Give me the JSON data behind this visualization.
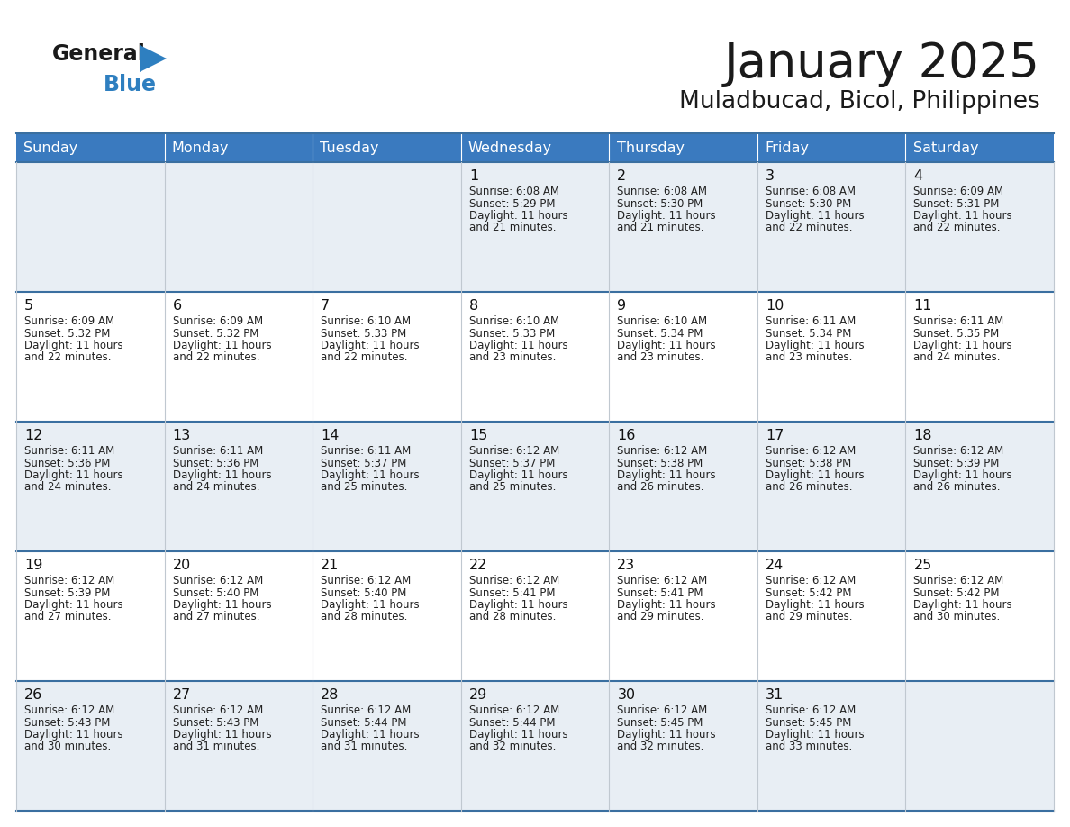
{
  "title": "January 2025",
  "subtitle": "Muladbucad, Bicol, Philippines",
  "header_color": "#3a7abf",
  "header_text_color": "#ffffff",
  "cell_bg_row0": "#e8eef4",
  "cell_bg_row1": "#ffffff",
  "cell_bg_row2": "#e8eef4",
  "cell_bg_row3": "#ffffff",
  "cell_bg_row4": "#e8eef4",
  "separator_color": "#3a6fa0",
  "grid_color": "#c0c8d0",
  "day_headers": [
    "Sunday",
    "Monday",
    "Tuesday",
    "Wednesday",
    "Thursday",
    "Friday",
    "Saturday"
  ],
  "days_data": [
    {
      "day": 1,
      "col": 3,
      "row": 0,
      "sunrise": "6:08 AM",
      "sunset": "5:29 PM",
      "daylight": "11 hours and 21 minutes."
    },
    {
      "day": 2,
      "col": 4,
      "row": 0,
      "sunrise": "6:08 AM",
      "sunset": "5:30 PM",
      "daylight": "11 hours and 21 minutes."
    },
    {
      "day": 3,
      "col": 5,
      "row": 0,
      "sunrise": "6:08 AM",
      "sunset": "5:30 PM",
      "daylight": "11 hours and 22 minutes."
    },
    {
      "day": 4,
      "col": 6,
      "row": 0,
      "sunrise": "6:09 AM",
      "sunset": "5:31 PM",
      "daylight": "11 hours and 22 minutes."
    },
    {
      "day": 5,
      "col": 0,
      "row": 1,
      "sunrise": "6:09 AM",
      "sunset": "5:32 PM",
      "daylight": "11 hours and 22 minutes."
    },
    {
      "day": 6,
      "col": 1,
      "row": 1,
      "sunrise": "6:09 AM",
      "sunset": "5:32 PM",
      "daylight": "11 hours and 22 minutes."
    },
    {
      "day": 7,
      "col": 2,
      "row": 1,
      "sunrise": "6:10 AM",
      "sunset": "5:33 PM",
      "daylight": "11 hours and 22 minutes."
    },
    {
      "day": 8,
      "col": 3,
      "row": 1,
      "sunrise": "6:10 AM",
      "sunset": "5:33 PM",
      "daylight": "11 hours and 23 minutes."
    },
    {
      "day": 9,
      "col": 4,
      "row": 1,
      "sunrise": "6:10 AM",
      "sunset": "5:34 PM",
      "daylight": "11 hours and 23 minutes."
    },
    {
      "day": 10,
      "col": 5,
      "row": 1,
      "sunrise": "6:11 AM",
      "sunset": "5:34 PM",
      "daylight": "11 hours and 23 minutes."
    },
    {
      "day": 11,
      "col": 6,
      "row": 1,
      "sunrise": "6:11 AM",
      "sunset": "5:35 PM",
      "daylight": "11 hours and 24 minutes."
    },
    {
      "day": 12,
      "col": 0,
      "row": 2,
      "sunrise": "6:11 AM",
      "sunset": "5:36 PM",
      "daylight": "11 hours and 24 minutes."
    },
    {
      "day": 13,
      "col": 1,
      "row": 2,
      "sunrise": "6:11 AM",
      "sunset": "5:36 PM",
      "daylight": "11 hours and 24 minutes."
    },
    {
      "day": 14,
      "col": 2,
      "row": 2,
      "sunrise": "6:11 AM",
      "sunset": "5:37 PM",
      "daylight": "11 hours and 25 minutes."
    },
    {
      "day": 15,
      "col": 3,
      "row": 2,
      "sunrise": "6:12 AM",
      "sunset": "5:37 PM",
      "daylight": "11 hours and 25 minutes."
    },
    {
      "day": 16,
      "col": 4,
      "row": 2,
      "sunrise": "6:12 AM",
      "sunset": "5:38 PM",
      "daylight": "11 hours and 26 minutes."
    },
    {
      "day": 17,
      "col": 5,
      "row": 2,
      "sunrise": "6:12 AM",
      "sunset": "5:38 PM",
      "daylight": "11 hours and 26 minutes."
    },
    {
      "day": 18,
      "col": 6,
      "row": 2,
      "sunrise": "6:12 AM",
      "sunset": "5:39 PM",
      "daylight": "11 hours and 26 minutes."
    },
    {
      "day": 19,
      "col": 0,
      "row": 3,
      "sunrise": "6:12 AM",
      "sunset": "5:39 PM",
      "daylight": "11 hours and 27 minutes."
    },
    {
      "day": 20,
      "col": 1,
      "row": 3,
      "sunrise": "6:12 AM",
      "sunset": "5:40 PM",
      "daylight": "11 hours and 27 minutes."
    },
    {
      "day": 21,
      "col": 2,
      "row": 3,
      "sunrise": "6:12 AM",
      "sunset": "5:40 PM",
      "daylight": "11 hours and 28 minutes."
    },
    {
      "day": 22,
      "col": 3,
      "row": 3,
      "sunrise": "6:12 AM",
      "sunset": "5:41 PM",
      "daylight": "11 hours and 28 minutes."
    },
    {
      "day": 23,
      "col": 4,
      "row": 3,
      "sunrise": "6:12 AM",
      "sunset": "5:41 PM",
      "daylight": "11 hours and 29 minutes."
    },
    {
      "day": 24,
      "col": 5,
      "row": 3,
      "sunrise": "6:12 AM",
      "sunset": "5:42 PM",
      "daylight": "11 hours and 29 minutes."
    },
    {
      "day": 25,
      "col": 6,
      "row": 3,
      "sunrise": "6:12 AM",
      "sunset": "5:42 PM",
      "daylight": "11 hours and 30 minutes."
    },
    {
      "day": 26,
      "col": 0,
      "row": 4,
      "sunrise": "6:12 AM",
      "sunset": "5:43 PM",
      "daylight": "11 hours and 30 minutes."
    },
    {
      "day": 27,
      "col": 1,
      "row": 4,
      "sunrise": "6:12 AM",
      "sunset": "5:43 PM",
      "daylight": "11 hours and 31 minutes."
    },
    {
      "day": 28,
      "col": 2,
      "row": 4,
      "sunrise": "6:12 AM",
      "sunset": "5:44 PM",
      "daylight": "11 hours and 31 minutes."
    },
    {
      "day": 29,
      "col": 3,
      "row": 4,
      "sunrise": "6:12 AM",
      "sunset": "5:44 PM",
      "daylight": "11 hours and 32 minutes."
    },
    {
      "day": 30,
      "col": 4,
      "row": 4,
      "sunrise": "6:12 AM",
      "sunset": "5:45 PM",
      "daylight": "11 hours and 32 minutes."
    },
    {
      "day": 31,
      "col": 5,
      "row": 4,
      "sunrise": "6:12 AM",
      "sunset": "5:45 PM",
      "daylight": "11 hours and 33 minutes."
    }
  ]
}
